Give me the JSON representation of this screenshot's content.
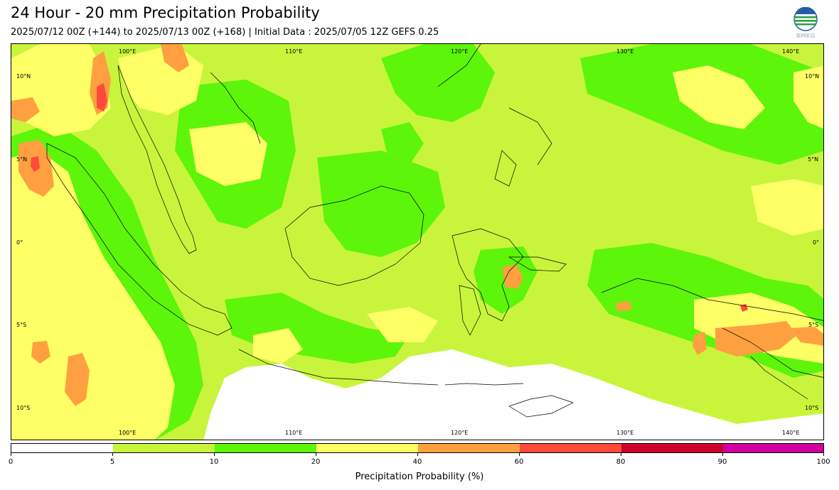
{
  "header": {
    "title": "24 Hour - 20 mm Precipitation Probability",
    "subtitle": "2025/07/12 00Z (+144) to 2025/07/13 00Z (+168) | Initial Data : 2025/07/05 12Z GEFS 0.25",
    "logo_text": "BMKG"
  },
  "map": {
    "lon_labels": [
      "100°E",
      "110°E",
      "120°E",
      "130°E",
      "140°E"
    ],
    "lat_labels": [
      "10°N",
      "5°N",
      "0°",
      "5°S",
      "10°S"
    ],
    "colors": {
      "p5": "#c8f53c",
      "p10": "#5df50a",
      "p20": "#ffff66",
      "p40": "#ffa040",
      "p60": "#ff4b3c",
      "p80": "#d0002e",
      "p90": "#d000a0",
      "coast": "#000000"
    }
  },
  "colorbar": {
    "title": "Precipitation Probability (%)",
    "ticks": [
      "0",
      "5",
      "10",
      "20",
      "40",
      "60",
      "80",
      "90",
      "100"
    ],
    "colors": [
      "#ffffff",
      "#c8f53c",
      "#5df50a",
      "#ffff66",
      "#ffa040",
      "#ff4b3c",
      "#d0002e",
      "#d000a0"
    ]
  }
}
